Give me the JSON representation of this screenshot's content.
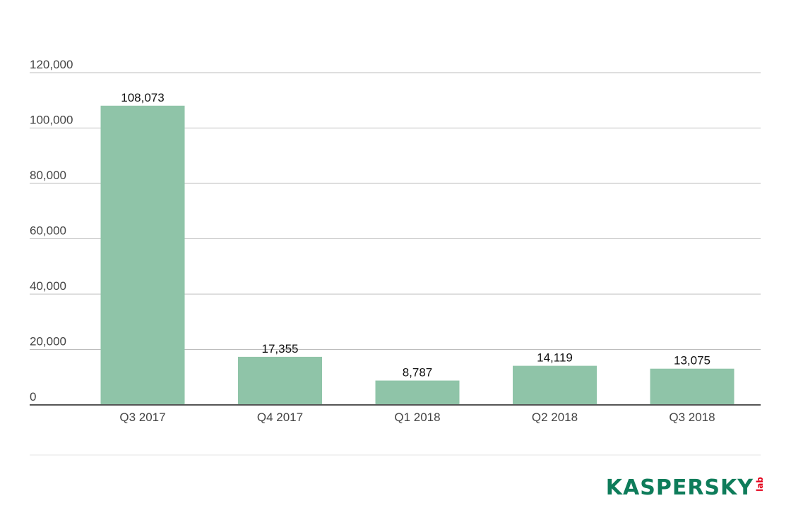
{
  "chart_data": {
    "type": "bar",
    "title": "",
    "xlabel": "",
    "ylabel": "",
    "categories": [
      "Q3 2017",
      "Q4 2017",
      "Q1 2018",
      "Q2 2018",
      "Q3 2018"
    ],
    "values": [
      108073,
      17355,
      8787,
      14119,
      13075
    ],
    "value_labels": [
      "108,073",
      "17,355",
      "8,787",
      "14,119",
      "13,075"
    ],
    "ylim": [
      0,
      120000
    ],
    "y_ticks": [
      0,
      20000,
      40000,
      60000,
      80000,
      100000,
      120000
    ],
    "y_tick_labels": [
      "0",
      "20,000",
      "40,000",
      "60,000",
      "80,000",
      "100,000",
      "120,000"
    ],
    "grid": true,
    "bar_color": "#8fc4a8",
    "grid_color": "#bdbdbd",
    "axis_color": "#555555"
  },
  "branding": {
    "logo_main": "KASPERSKY",
    "logo_sub": "lab",
    "logo_color": "#0e7c5a",
    "logo_accent_color": "#e4001b"
  }
}
